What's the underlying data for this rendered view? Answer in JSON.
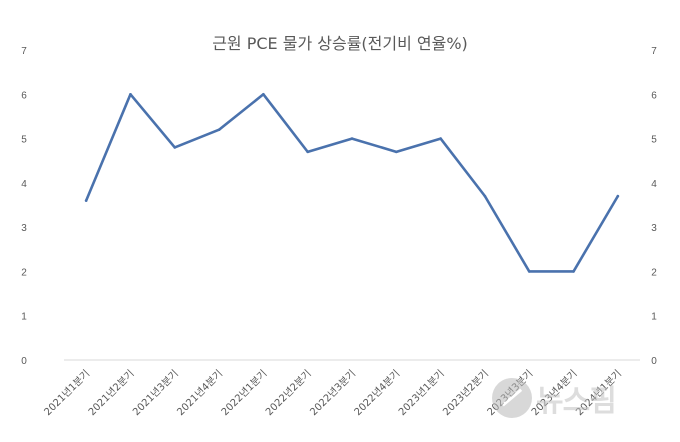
{
  "chart_data": {
    "type": "line",
    "title": "근원 PCE 물가 상승률(전기비 연율%)",
    "categories": [
      "2021년1분기",
      "2021년2분기",
      "2021년3분기",
      "2021년4분기",
      "2022년1분기",
      "2022년2분기",
      "2022년3분기",
      "2022년4분기",
      "2023년1분기",
      "2023년2분기",
      "2023년3분기",
      "2023년4분기",
      "2024년1분기"
    ],
    "series": [
      {
        "values": [
          3.6,
          6.0,
          4.8,
          5.2,
          6.0,
          4.7,
          5.0,
          4.7,
          5.0,
          3.7,
          2.0,
          2.0,
          3.7
        ]
      }
    ],
    "ylim": [
      0,
      7
    ],
    "yticks": [
      0,
      1,
      2,
      3,
      4,
      5,
      6,
      7
    ],
    "grid": false,
    "secondary_axis": true,
    "line_color": "#4a72ad",
    "legend": "none"
  },
  "watermark": {
    "text": "뉴스핌",
    "logo_icon": "newspim-logo-icon"
  }
}
